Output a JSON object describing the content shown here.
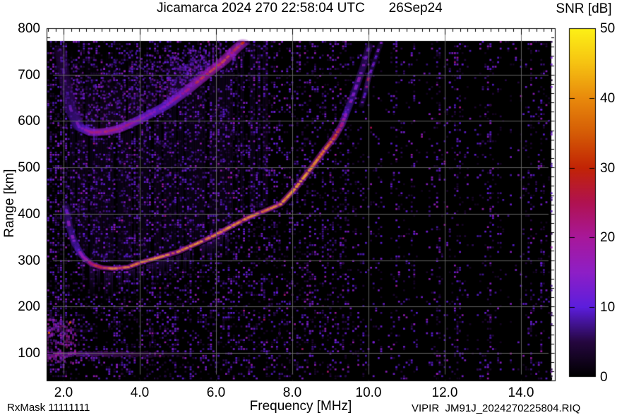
{
  "header": {
    "title": "Jicamarca 2024 270 22:58:04 UTC",
    "date": "26Sep24",
    "colorbar_title": "SNR [dB]"
  },
  "footer": {
    "rx_mask": "RxMask 11111111",
    "file_label": "VIPIR  JM91J_2024270225804.RIQ"
  },
  "chart_data": {
    "type": "heatmap",
    "title": "Jicamarca 2024 270 22:58:04 UTC",
    "date_label": "26Sep24",
    "xlabel": "Frequency [MHz]",
    "ylabel": "Range [km]",
    "xlim": [
      1.56,
      14.89
    ],
    "ylim": [
      40,
      800
    ],
    "grid": true,
    "xticks": [
      {
        "v": 2,
        "label": "2.0"
      },
      {
        "v": 4,
        "label": "4.0"
      },
      {
        "v": 6,
        "label": "6.0"
      },
      {
        "v": 8,
        "label": "8.0"
      },
      {
        "v": 10,
        "label": "10.0"
      },
      {
        "v": 12,
        "label": "12.0"
      },
      {
        "v": 14,
        "label": "14.0"
      }
    ],
    "yticks": [
      {
        "v": 100,
        "label": "100"
      },
      {
        "v": 200,
        "label": "200"
      },
      {
        "v": 300,
        "label": "300"
      },
      {
        "v": 400,
        "label": "400"
      },
      {
        "v": 500,
        "label": "500"
      },
      {
        "v": 600,
        "label": "600"
      },
      {
        "v": 700,
        "label": "700"
      },
      {
        "v": 800,
        "label": "800"
      }
    ],
    "x_minor_step_MHz": 0.2,
    "y_minor_step_km": 20,
    "colorbar": {
      "label": "SNR [dB]",
      "min": 0,
      "max": 50,
      "ticks": [
        {
          "v": 0,
          "label": "0"
        },
        {
          "v": 10,
          "label": "10"
        },
        {
          "v": 20,
          "label": "20"
        },
        {
          "v": 30,
          "label": "30"
        },
        {
          "v": 40,
          "label": "40"
        },
        {
          "v": 50,
          "label": "50"
        }
      ]
    },
    "palette": [
      [
        0.0,
        "#000000"
      ],
      [
        0.1,
        "#25073f"
      ],
      [
        0.2,
        "#5c1edd"
      ],
      [
        0.3,
        "#8e1fc6"
      ],
      [
        0.4,
        "#a8189a"
      ],
      [
        0.5,
        "#b01250"
      ],
      [
        0.6,
        "#c22405"
      ],
      [
        0.7,
        "#d55c06"
      ],
      [
        0.8,
        "#e98a0c"
      ],
      [
        0.9,
        "#f6c312"
      ],
      [
        1.0,
        "#fdf116"
      ]
    ],
    "series": [
      {
        "name": "F-region echo trace (O-mode)",
        "points_f_MHz_range_km_snr_dB": [
          [
            2.06,
            418,
            13
          ],
          [
            2.15,
            372,
            15
          ],
          [
            2.3,
            335,
            17
          ],
          [
            2.5,
            308,
            20
          ],
          [
            2.75,
            291,
            28
          ],
          [
            3.0,
            284,
            34
          ],
          [
            3.3,
            282,
            40
          ],
          [
            3.7,
            285,
            38
          ],
          [
            4.05,
            296,
            40
          ],
          [
            4.5,
            306,
            42
          ],
          [
            5.0,
            318,
            40
          ],
          [
            5.5,
            336,
            42
          ],
          [
            5.95,
            353,
            40
          ],
          [
            6.4,
            373,
            42
          ],
          [
            6.85,
            392,
            40
          ],
          [
            7.3,
            407,
            38
          ],
          [
            7.7,
            421,
            40
          ],
          [
            8.06,
            453,
            42
          ],
          [
            8.5,
            499,
            40
          ],
          [
            8.85,
            538,
            38
          ],
          [
            9.1,
            564,
            34
          ],
          [
            9.3,
            592,
            26
          ],
          [
            9.42,
            618,
            18
          ],
          [
            9.55,
            645,
            16
          ],
          [
            9.66,
            670,
            15
          ],
          [
            9.76,
            693,
            14
          ],
          [
            9.86,
            717,
            13
          ],
          [
            9.95,
            742,
            12
          ],
          [
            10.03,
            766,
            12
          ]
        ]
      },
      {
        "name": "F-region asymptote near foF2 (X-mode, dashed)",
        "dashed": true,
        "points_f_MHz_range_km_snr_dB": [
          [
            9.81,
            633,
            12
          ],
          [
            9.91,
            659,
            13
          ],
          [
            10.0,
            692,
            26
          ],
          [
            10.07,
            709,
            13
          ],
          [
            10.17,
            732,
            12
          ],
          [
            10.26,
            754,
            12
          ],
          [
            10.35,
            772,
            11
          ]
        ]
      },
      {
        "name": "Second-hop F echo (2F)",
        "points_f_MHz_range_km_snr_dB": [
          [
            1.91,
            754,
            9
          ],
          [
            2.04,
            686,
            10
          ],
          [
            2.19,
            625,
            12
          ],
          [
            2.41,
            587,
            15
          ],
          [
            2.74,
            575,
            26
          ],
          [
            3.1,
            577,
            30
          ],
          [
            3.45,
            583,
            28
          ],
          [
            4.04,
            605,
            22
          ],
          [
            4.69,
            633,
            20
          ],
          [
            5.24,
            666,
            26
          ],
          [
            5.7,
            697,
            32
          ],
          [
            6.17,
            727,
            33
          ],
          [
            6.54,
            757,
            31
          ],
          [
            6.81,
            776,
            29
          ]
        ]
      }
    ],
    "features": {
      "foF2_MHz_approx": 10.0,
      "min_virtual_height_km_approx": 285,
      "second_hop_min_height_km_approx": 575,
      "background": "purple speckle noise with vertical striping, denser below ~9.5 MHz; diffuse spread echoes above traces between 2 and 7 MHz"
    },
    "noise": {
      "e_region_band": {
        "f_MHz": [
          1.56,
          5.3
        ],
        "range_km": [
          94,
          106
        ]
      },
      "left_edge_blob": {
        "f_MHz": [
          1.56,
          2.3
        ],
        "range_km": [
          80,
          175
        ]
      },
      "bright_stripes_MHz": [
        10.75,
        11.15,
        11.8,
        12.3,
        13.15,
        14.2,
        14.55
      ],
      "dark_stripes_MHz": [
        10.45,
        11.4,
        12.7,
        13.6,
        13.85
      ]
    }
  }
}
